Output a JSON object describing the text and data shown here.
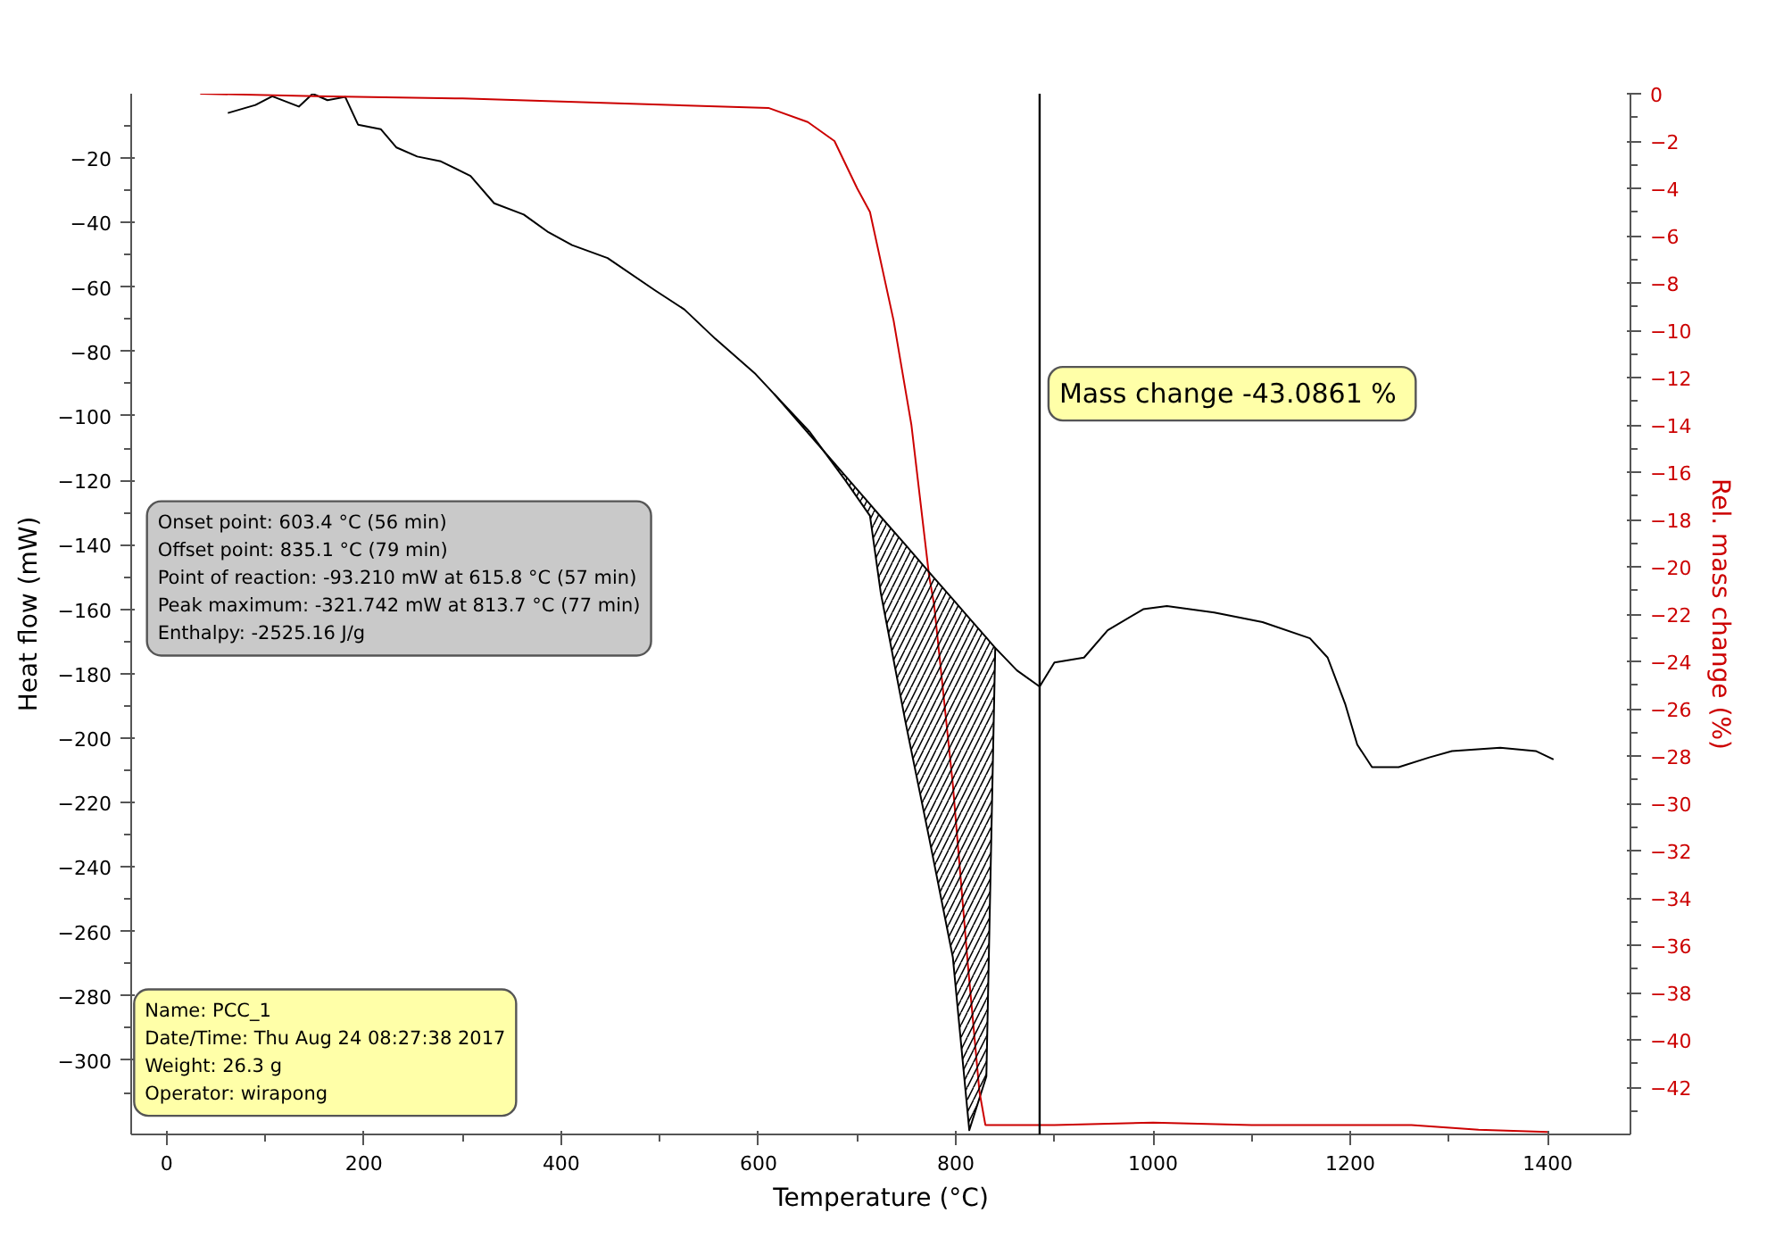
{
  "chart_data": {
    "type": "line",
    "xlabel": "Temperature (°C)",
    "ylabel": "Heat flow (mW)",
    "y2label": "Rel. mass change (%)",
    "xlim": [
      -36,
      1484
    ],
    "ylim": [
      -323,
      0
    ],
    "y2lim": [
      -44,
      0
    ],
    "xticks": [
      0,
      200,
      400,
      600,
      800,
      1000,
      1200,
      1400
    ],
    "yticks": [
      -20,
      -40,
      -60,
      -80,
      -100,
      -120,
      -140,
      -160,
      -180,
      -200,
      -220,
      -240,
      -260,
      -280,
      -300
    ],
    "y2ticks": [
      0,
      -2,
      -4,
      -6,
      -8,
      -10,
      -12,
      -14,
      -16,
      -18,
      -20,
      -22,
      -24,
      -26,
      -28,
      -30,
      -32,
      -34,
      -36,
      -38,
      -40,
      -42
    ],
    "grid": false,
    "series": [
      {
        "color": "#000000",
        "x": [
          62,
          90,
          107,
          134,
          148,
          163,
          181,
          194,
          217,
          233,
          254,
          278,
          308,
          332,
          362,
          387,
          411,
          447,
          495,
          525,
          556,
          597,
          615.8,
          652,
          688,
          713,
          724,
          749,
          773,
          797,
          813.7,
          831,
          836,
          840,
          862,
          885,
          900,
          930,
          954,
          990,
          1014,
          1062,
          1111,
          1159,
          1177,
          1195,
          1207,
          1222,
          1249,
          1280,
          1303,
          1352,
          1388,
          1406
        ],
        "values": [
          -6,
          -3.5,
          -0.8,
          -4,
          0,
          -2,
          -1,
          -9.6,
          -11,
          -16.7,
          -19.5,
          -21,
          -25.5,
          -34,
          -37.5,
          -43,
          -47,
          -51,
          -61,
          -67,
          -76,
          -87,
          -93.2,
          -105,
          -120,
          -131,
          -155,
          -195,
          -231,
          -268,
          -321.7,
          -305,
          -231,
          -172,
          -179,
          -184,
          -176.5,
          -175,
          -166.5,
          -160,
          -159,
          -161,
          -164,
          -169,
          -175,
          -189.6,
          -202,
          -209,
          -209,
          -206,
          -204,
          -203,
          -204,
          -206.6
        ]
      },
      {
        "color": "#cc0000",
        "axis": "y2",
        "x": [
          34,
          150,
          300,
          450,
          610,
          650,
          677,
          700,
          713,
          737,
          755,
          773,
          778,
          797,
          812,
          824,
          830,
          900,
          1000,
          1100,
          1262,
          1330,
          1400
        ],
        "values": [
          0,
          -0.1,
          -0.2,
          -0.4,
          -0.6,
          -1.2,
          -2,
          -4,
          -5,
          -9.6,
          -14,
          -20.4,
          -21.6,
          -29.2,
          -36.7,
          -42.2,
          -43.6,
          -43.6,
          -43.5,
          -43.6,
          -43.6,
          -43.8,
          -43.9
        ]
      },
      {
        "color": "#000000",
        "x": [
          615.8,
          652,
          688,
          713,
          724,
          749,
          773,
          797,
          813.7,
          831,
          836,
          840
        ],
        "values": [
          -93.2,
          -105.9,
          -118.6,
          -127.4,
          -131.3,
          -140.0,
          -148.5,
          -156.9,
          -162.8,
          -168.8,
          -170.6,
          -172
        ],
        "lower": [
          -93.2,
          -105,
          -120,
          -131,
          -155,
          -195,
          -231,
          -268,
          -321.7,
          -305,
          -231,
          -172
        ],
        "upper": [
          -93.2,
          -105.9,
          -118.6,
          -127.4,
          -131.3,
          -140.0,
          -148.5,
          -156.9,
          -162.8,
          -168.8,
          -170.6,
          -172
        ]
      }
    ],
    "ref_lines": [
      {
        "axis": "x",
        "value": 885,
        "color": "#000000"
      }
    ],
    "annotations": [
      "Onset point: 603.4 °C (56 min)",
      "Offset point: 835.1 °C (79 min)",
      "Point of reaction: -93.210 mW at 615.8 °C (57 min)",
      "Peak maximum: -321.742 mW at 813.7 °C (77 min)",
      "Enthalpy: -2525.16 J/g",
      "Mass change  -43.0861 %",
      "Name: PCC_1",
      "Date/Time: Thu Aug 24 08:27:38 2017",
      "Weight: 26.3 g",
      "Operator: wirapong"
    ]
  }
}
